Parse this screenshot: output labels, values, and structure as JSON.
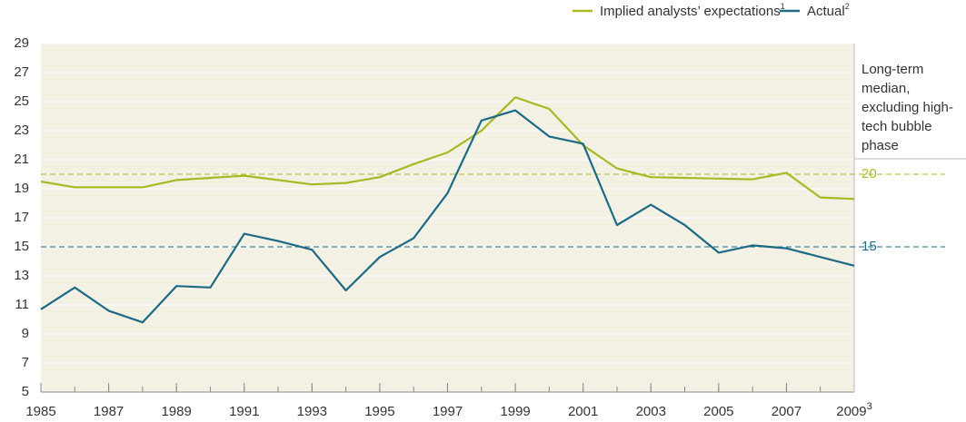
{
  "chart_data": {
    "type": "line",
    "x": [
      1985,
      1986,
      1987,
      1988,
      1989,
      1990,
      1991,
      1992,
      1993,
      1994,
      1995,
      1996,
      1997,
      1998,
      1999,
      2000,
      2001,
      2002,
      2003,
      2004,
      2005,
      2006,
      2007,
      2008,
      2009
    ],
    "series": [
      {
        "name": "Implied analysts’ expectations",
        "footnote": "1",
        "color": "#a9b824",
        "values": [
          19.5,
          19.1,
          19.1,
          19.1,
          19.6,
          19.75,
          19.9,
          19.6,
          19.3,
          19.4,
          19.8,
          20.7,
          21.5,
          23.0,
          25.3,
          24.5,
          22.0,
          20.4,
          19.8,
          19.75,
          19.7,
          19.65,
          20.1,
          18.4,
          18.3
        ]
      },
      {
        "name": "Actual",
        "footnote": "2",
        "color": "#1d6a86",
        "values": [
          10.7,
          12.2,
          10.6,
          9.8,
          12.3,
          12.2,
          15.9,
          15.4,
          14.8,
          12.0,
          14.3,
          15.6,
          18.7,
          23.7,
          24.4,
          22.6,
          22.1,
          16.5,
          17.9,
          16.5,
          14.6,
          15.1,
          14.9,
          14.3,
          13.7
        ]
      }
    ],
    "reference_lines": [
      {
        "value": 20,
        "color": "#a9b824"
      },
      {
        "value": 15,
        "color": "#1d6a86"
      }
    ],
    "annotation": "Long-term median, excluding high-tech bubble phase",
    "xlim": [
      1985,
      2009
    ],
    "xticks": [
      1985,
      1987,
      1989,
      1991,
      1993,
      1995,
      1997,
      1999,
      2001,
      2003,
      2005,
      2007,
      {
        "value": 2009,
        "label": "2009",
        "superscript": "3"
      }
    ],
    "ylim": [
      5,
      29
    ],
    "yticks": [
      5,
      7,
      9,
      11,
      13,
      15,
      17,
      19,
      21,
      23,
      25,
      27,
      29
    ],
    "grid": true
  }
}
